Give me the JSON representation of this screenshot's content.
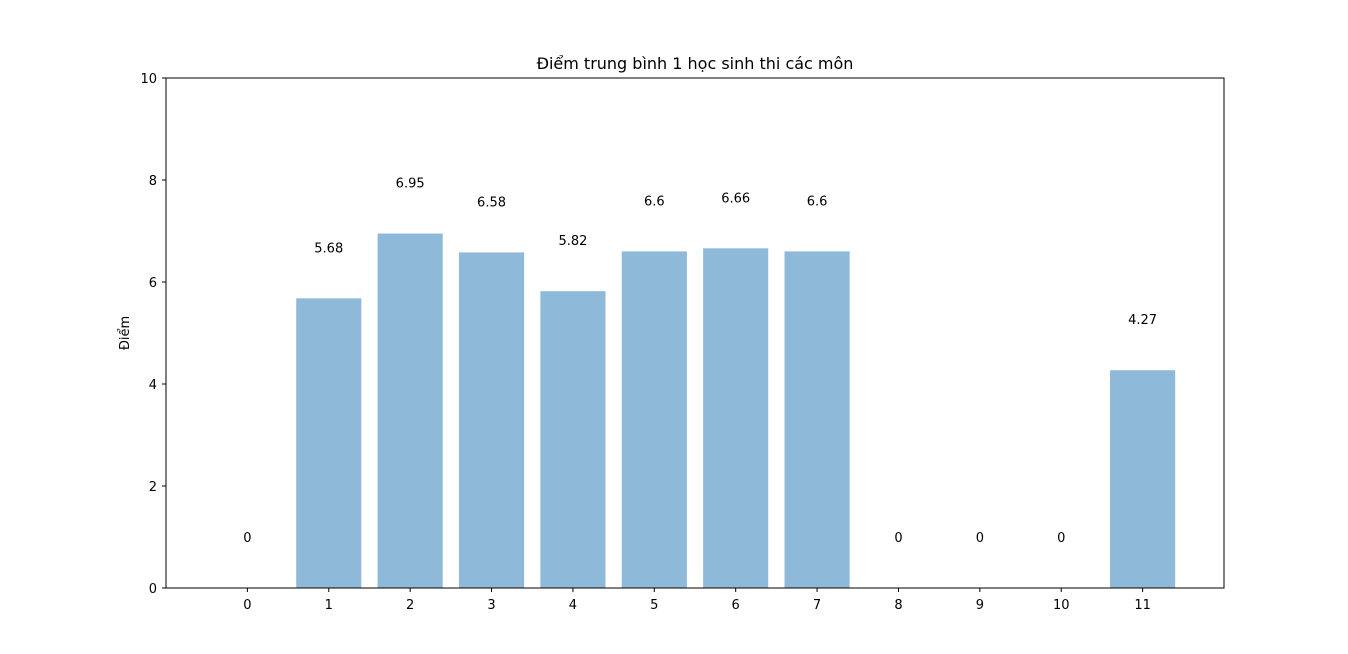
{
  "chart_data": {
    "type": "bar",
    "title": "Điểm trung bình 1 học sinh thi các môn",
    "xlabel": "",
    "ylabel": "Điểm",
    "categories": [
      "0",
      "1",
      "2",
      "3",
      "4",
      "5",
      "6",
      "7",
      "8",
      "9",
      "10",
      "11"
    ],
    "values": [
      0,
      5.68,
      6.95,
      6.58,
      5.82,
      6.6,
      6.66,
      6.6,
      0,
      0,
      0,
      4.27
    ],
    "data_labels": [
      "0",
      "5.68",
      "6.95",
      "6.58",
      "5.82",
      "6.6",
      "6.66",
      "6.6",
      "0",
      "0",
      "0",
      "4.27"
    ],
    "ylim": [
      0,
      10
    ],
    "yticks": [
      "0",
      "2",
      "4",
      "6",
      "8",
      "10"
    ],
    "grid": false,
    "bar_color": "#8fb9d9"
  }
}
